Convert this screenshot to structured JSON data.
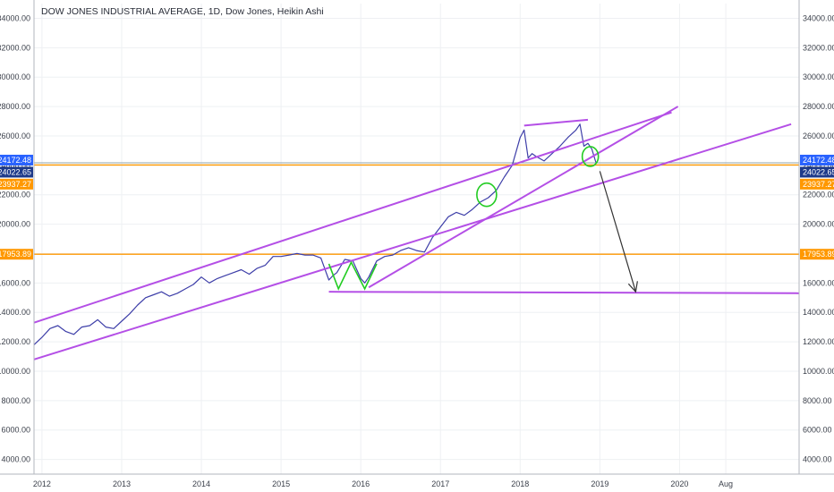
{
  "title": "DOW JONES INDUSTRIAL AVERAGE, 1D, Dow Jones, Heikin Ashi",
  "colors": {
    "price_line": "#3d3ea8",
    "trendline": "#b44fe6",
    "horizontal_line": "#ff9800",
    "current_line": "#90a4ae",
    "price_tag_blue": "#2962ff",
    "price_tag_dark": "#1e3a8a",
    "price_tag_orange": "#ff9800",
    "highlight_circle": "#22cc22",
    "arrow": "#333333",
    "grid": "#eef0f3"
  },
  "chart_data": {
    "type": "line",
    "title": "DOW JONES INDUSTRIAL AVERAGE, 1D, Dow Jones, Heikin Ashi",
    "ylim": [
      3000,
      35000
    ],
    "y_ticks": [
      4000,
      6000,
      8000,
      10000,
      12000,
      14000,
      16000,
      18000,
      20000,
      22000,
      24000,
      26000,
      28000,
      30000,
      32000,
      34000
    ],
    "y_tick_labels": [
      "4000.00",
      "6000.00",
      "8000.00",
      "10000.00",
      "12000.00",
      "14000.00",
      "16000.00",
      "18000.00",
      "20000.00",
      "22000.00",
      "24000.00",
      "26000.00",
      "28000.00",
      "30000.00",
      "32000.00",
      "34000.00"
    ],
    "x_range": [
      2011.9,
      2021.5
    ],
    "x_ticks": [
      2012,
      2013,
      2014,
      2015,
      2016,
      2017,
      2018,
      2019,
      2020,
      2020.58
    ],
    "x_tick_labels": [
      "2012",
      "2013",
      "2014",
      "2015",
      "2016",
      "2017",
      "2018",
      "2019",
      "2020",
      "Aug"
    ],
    "grid": true,
    "series": [
      {
        "x": [
          2011.9,
          2012.0,
          2012.1,
          2012.2,
          2012.3,
          2012.4,
          2012.5,
          2012.6,
          2012.7,
          2012.8,
          2012.9,
          2013.0,
          2013.1,
          2013.2,
          2013.3,
          2013.4,
          2013.5,
          2013.6,
          2013.7,
          2013.8,
          2013.9,
          2014.0,
          2014.1,
          2014.2,
          2014.3,
          2014.4,
          2014.5,
          2014.6,
          2014.7,
          2014.8,
          2014.9,
          2015.0,
          2015.1,
          2015.2,
          2015.3,
          2015.4,
          2015.5,
          2015.6,
          2015.65,
          2015.7,
          2015.8,
          2015.9,
          2016.0,
          2016.05,
          2016.1,
          2016.2,
          2016.3,
          2016.4,
          2016.5,
          2016.6,
          2016.7,
          2016.8,
          2016.9,
          2017.0,
          2017.1,
          2017.2,
          2017.3,
          2017.4,
          2017.5,
          2017.6,
          2017.7,
          2017.8,
          2017.9,
          2018.0,
          2018.05,
          2018.1,
          2018.15,
          2018.2,
          2018.3,
          2018.4,
          2018.5,
          2018.6,
          2018.7,
          2018.75,
          2018.8,
          2018.85,
          2018.9,
          2018.95
        ],
        "values": [
          11800,
          12300,
          12900,
          13100,
          12700,
          12500,
          13000,
          13100,
          13500,
          13000,
          12900,
          13400,
          13900,
          14500,
          15000,
          15200,
          15400,
          15100,
          15300,
          15600,
          15900,
          16400,
          16000,
          16300,
          16500,
          16700,
          16900,
          16600,
          17000,
          17200,
          17800,
          17800,
          17900,
          18000,
          17900,
          17900,
          17700,
          16200,
          16500,
          16700,
          17600,
          17500,
          16300,
          16000,
          16400,
          17500,
          17800,
          17900,
          18200,
          18400,
          18200,
          18100,
          19100,
          19800,
          20500,
          20800,
          20600,
          21000,
          21500,
          21800,
          22300,
          23200,
          24000,
          25900,
          26400,
          24500,
          24800,
          24600,
          24300,
          24800,
          25300,
          25900,
          26400,
          26800,
          25300,
          25500,
          25100,
          24200
        ]
      }
    ],
    "annotations": {
      "horizontal_levels": [
        {
          "value": 24172.48,
          "label": "24172.48"
        },
        {
          "value": 24022.65,
          "label": "24022.65"
        },
        {
          "value": 23937.27,
          "label": "23937.27"
        },
        {
          "value": 17953.89,
          "label": "17953.89"
        }
      ],
      "trendlines": [
        {
          "name": "upper-channel",
          "from": [
            2011.9,
            13300
          ],
          "to": [
            2019.9,
            27600
          ]
        },
        {
          "name": "lower-channel",
          "from": [
            2011.9,
            10800
          ],
          "to": [
            2021.4,
            26800
          ]
        },
        {
          "name": "rising-support",
          "from": [
            2016.1,
            15700
          ],
          "to": [
            2019.98,
            28000
          ]
        },
        {
          "name": "top-line",
          "from": [
            2018.05,
            26700
          ],
          "to": [
            2018.85,
            27100
          ]
        },
        {
          "name": "support-base",
          "from": [
            2015.6,
            15400
          ],
          "to": [
            2021.5,
            15300
          ]
        }
      ],
      "arrow": {
        "from": [
          2019.0,
          23600
        ],
        "to": [
          2019.45,
          15400
        ]
      }
    }
  }
}
